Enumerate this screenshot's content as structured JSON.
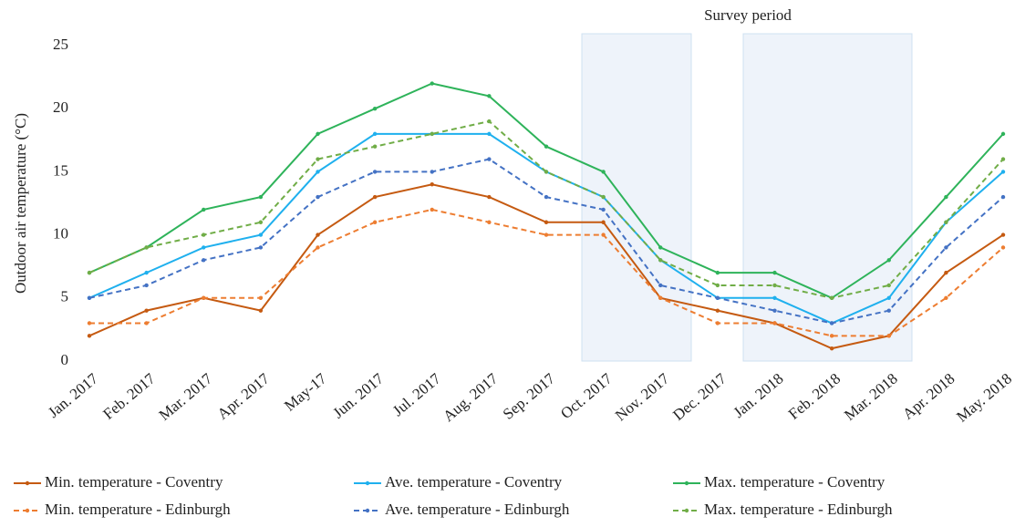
{
  "chart_data": {
    "type": "line",
    "annotation": "Survey period",
    "y_label": "Outdoor air temperature (°C)",
    "categories": [
      "Jan. 2017",
      "Feb. 2017",
      "Mar. 2017",
      "Apr. 2017",
      "May-17",
      "Jun. 2017",
      "Jul. 2017",
      "Aug. 2017",
      "Sep. 2017",
      "Oct. 2017",
      "Nov. 2017",
      "Dec. 2017",
      "Jan. 2018",
      "Feb. 2018",
      "Mar. 2018",
      "Apr. 2018",
      "May. 2018"
    ],
    "series": [
      {
        "name": "Min. temperature - Coventry",
        "color": "#c55a11",
        "style": "solid",
        "values": [
          2,
          4,
          5,
          4,
          10,
          13,
          14,
          13,
          11,
          11,
          5,
          4,
          3,
          1,
          2,
          7,
          10
        ]
      },
      {
        "name": "Ave. temperature - Coventry",
        "color": "#1fb0ee",
        "style": "solid",
        "values": [
          5,
          7,
          9,
          10,
          15,
          18,
          18,
          18,
          15,
          13,
          8,
          5,
          5,
          3,
          5,
          11,
          15
        ]
      },
      {
        "name": "Max. temperature - Coventry",
        "color": "#2eb35a",
        "style": "solid",
        "values": [
          7,
          9,
          12,
          13,
          18,
          20,
          22,
          21,
          17,
          15,
          9,
          7,
          7,
          5,
          8,
          13,
          18
        ]
      },
      {
        "name": "Min. temperature - Edinburgh",
        "color": "#ed7d31",
        "style": "dashed",
        "values": [
          3,
          3,
          5,
          5,
          9,
          11,
          12,
          11,
          10,
          10,
          5,
          3,
          3,
          2,
          2,
          5,
          9
        ]
      },
      {
        "name": "Ave. temperature - Edinburgh",
        "color": "#4472c4",
        "style": "dashed",
        "values": [
          5,
          6,
          8,
          9,
          13,
          15,
          15,
          16,
          13,
          12,
          6,
          5,
          4,
          3,
          4,
          9,
          13
        ]
      },
      {
        "name": "Max. temperature - Edinburgh",
        "color": "#70ad47",
        "style": "dashed",
        "values": [
          7,
          9,
          10,
          11,
          16,
          17,
          18,
          19,
          15,
          13,
          8,
          6,
          6,
          5,
          6,
          11,
          16
        ]
      }
    ],
    "ylim": [
      0,
      25
    ],
    "yticks": [
      0,
      5,
      10,
      15,
      20,
      25
    ],
    "grid": false
  }
}
